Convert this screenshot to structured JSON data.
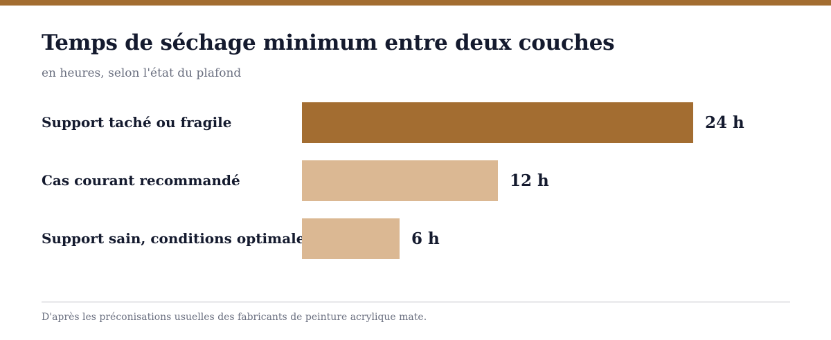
{
  "chart_data": {
    "type": "bar",
    "orientation": "horizontal",
    "title": "Temps de séchage minimum entre deux couches",
    "subtitle": "en heures, selon l'état du plafond",
    "categories": [
      "Support taché ou fragile",
      "Cas courant recommandé",
      "Support sain, conditions optimales"
    ],
    "values": [
      24,
      12,
      6
    ],
    "value_labels": [
      "24 h",
      "12 h",
      "6 h"
    ],
    "unit": "h",
    "xlim": [
      0,
      24
    ],
    "highlight_index": 0,
    "grid": false,
    "legend": "none",
    "source": "D'après les préconisations usuelles des fabricants de peinture acrylique mate."
  },
  "colors": {
    "accent": "#a36d31",
    "muted_bar": "#dbb893",
    "text_dark": "#141a2e",
    "text_muted": "#6b7080"
  }
}
